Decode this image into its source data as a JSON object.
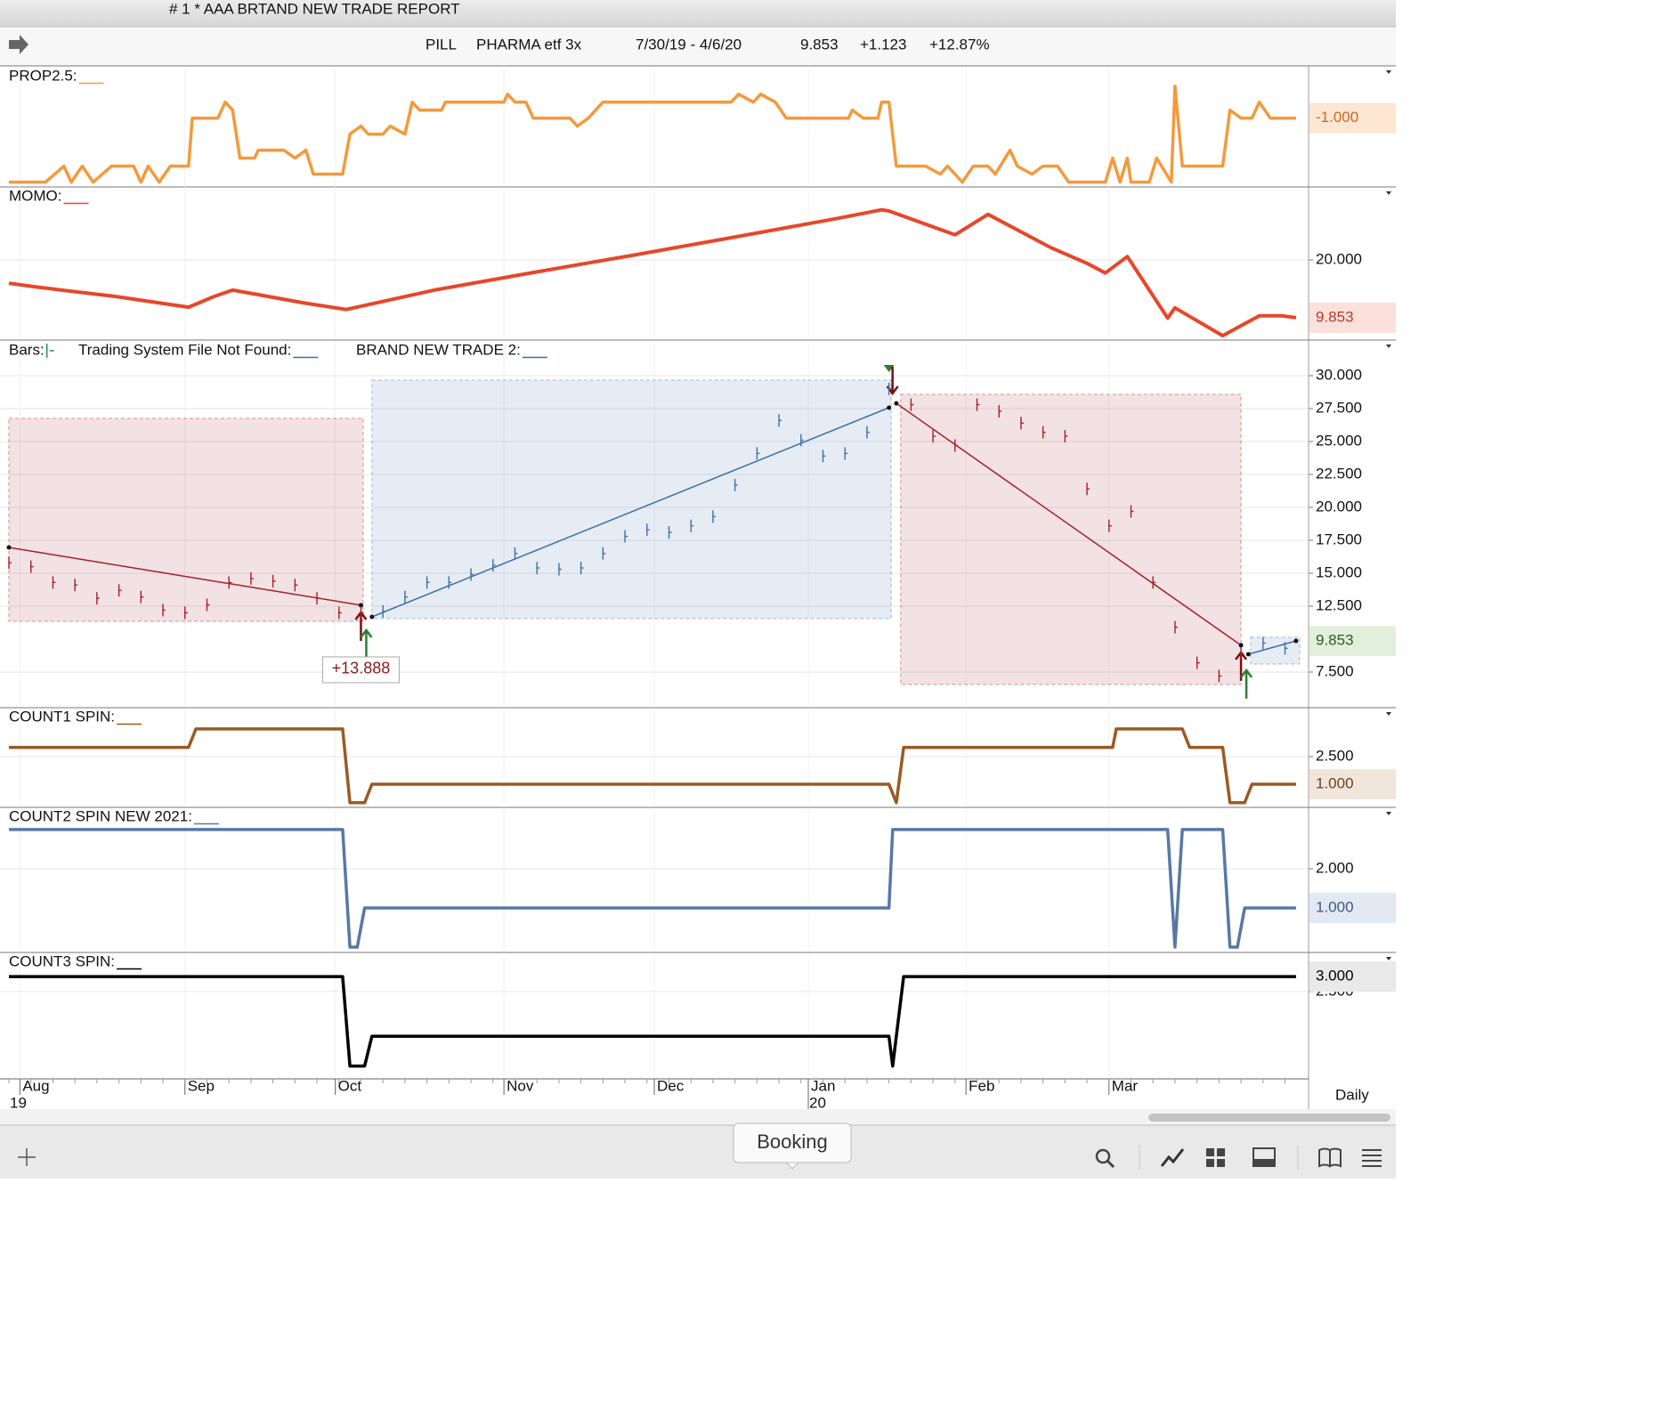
{
  "window": {
    "title": "# 1 * AAA BRTAND NEW TRADE REPORT"
  },
  "header": {
    "symbol": "PILL",
    "name": "PHARMA etf 3x",
    "range": "7/30/19 - 4/6/20",
    "last": "9.853",
    "change": "+1.123",
    "change_pct": "+12.87%"
  },
  "chart_data": [
    {
      "type": "line",
      "title": "PROP2.5:",
      "ylim": [
        -5.3,
        2.1
      ],
      "value_tag": {
        "value": -1,
        "label": "-1.000"
      },
      "series": [
        {
          "color": "#f39a3c",
          "x": [
            0,
            5,
            7.5,
            8.5,
            10,
            11.5,
            14,
            17,
            18,
            19,
            20.5,
            22,
            24.5,
            25,
            28.5,
            29.5,
            30.5,
            31.5,
            33.5,
            34,
            37.5,
            39,
            40.5,
            41.5,
            45.5,
            46.5,
            48,
            49,
            51,
            52,
            54,
            55,
            56,
            59,
            59.5,
            67.5,
            68,
            69,
            70.5,
            71.5,
            76.5,
            77.5,
            79,
            81,
            98.5,
            99.5,
            101.5,
            102.5,
            104.5,
            106,
            114.5,
            115,
            116.5,
            118.5,
            119,
            120,
            121,
            125,
            127,
            128,
            130,
            131.5,
            133.5,
            134.5,
            136.5,
            137.5,
            139.5,
            141,
            143,
            144.5,
            149.5,
            150.5,
            151.5,
            152.5,
            153,
            155.5,
            156.5,
            158.5,
            159,
            160,
            165.5,
            166.5,
            168,
            169.5,
            170.5,
            172,
            175.5
          ],
          "values": [
            -5,
            -5,
            -4,
            -5,
            -4,
            -5,
            -4,
            -4,
            -5,
            -4,
            -5,
            -4,
            -4,
            -1,
            -1,
            0,
            -0.5,
            -3.5,
            -3.5,
            -3,
            -3,
            -3.5,
            -3,
            -4.5,
            -4.5,
            -2,
            -1.5,
            -2,
            -2,
            -1.5,
            -2,
            0,
            -0.5,
            -0.5,
            0,
            0,
            0.5,
            0,
            0,
            -1,
            -1,
            -1.5,
            -1,
            0,
            0,
            0.5,
            0,
            0.5,
            0,
            -1,
            -1,
            -0.5,
            -1,
            -1,
            0,
            0,
            -4,
            -4,
            -4.5,
            -4,
            -5,
            -4,
            -4,
            -4.5,
            -3,
            -4,
            -4.5,
            -4,
            -4,
            -5,
            -5,
            -3.5,
            -5,
            -3.5,
            -5,
            -5,
            -3.5,
            -5,
            1,
            -4,
            -4,
            -0.5,
            -1,
            -1,
            0,
            -1,
            -1
          ]
        }
      ]
    },
    {
      "type": "line",
      "title": "MOMO:",
      "ylim": [
        6.25,
        32.5
      ],
      "yticks": [
        {
          "value": 20,
          "label": "20.000"
        }
      ],
      "value_tag": {
        "value": 9.853,
        "label": "9.853"
      },
      "series": [
        {
          "color": "#e8462a",
          "x": [
            0,
            3.5,
            8.5,
            14.5,
            24.5,
            28,
            30.5,
            34,
            40,
            46,
            58,
            71.5,
            85,
            98.5,
            113,
            119,
            120,
            129,
            133.5,
            142,
            147,
            149.5,
            152.5,
            158,
            159,
            165.5,
            170.5,
            173.5,
            175.5
          ],
          "values": [
            15.9,
            15.3,
            14.5,
            13.6,
            11.7,
            13.6,
            14.7,
            13.9,
            12.5,
            11.3,
            14.7,
            17.8,
            20.8,
            23.9,
            27.3,
            28.8,
            28.6,
            24.4,
            28,
            22.2,
            19.4,
            17.7,
            20.6,
            9.8,
            11.6,
            6.7,
            10.2,
            10.2,
            9.853
          ]
        }
      ]
    },
    {
      "type": "price_bar",
      "titles": [
        "Bars:",
        "Trading System File Not Found:",
        "BRAND NEW TRADE 2:"
      ],
      "ylim": [
        4.93,
        32.57
      ],
      "yticks": [
        {
          "value": 30,
          "label": "30.000"
        },
        {
          "value": 27.5,
          "label": "27.500"
        },
        {
          "value": 25,
          "label": "25.000"
        },
        {
          "value": 22.5,
          "label": "22.500"
        },
        {
          "value": 20,
          "label": "20.000"
        },
        {
          "value": 17.5,
          "label": "17.500"
        },
        {
          "value": 15,
          "label": "15.000"
        },
        {
          "value": 12.5,
          "label": "12.500"
        },
        {
          "value": 7.5,
          "label": "7.500"
        }
      ],
      "value_tag": {
        "value": 9.853,
        "label": "9.853"
      },
      "bars": {
        "x": [
          0,
          3,
          6,
          9,
          12,
          15,
          18,
          21,
          24,
          27,
          30,
          33,
          36,
          39,
          42,
          45,
          48,
          51,
          54,
          57,
          60,
          63,
          66,
          69,
          72,
          75,
          78,
          81,
          84,
          87,
          90,
          93,
          96,
          99,
          102,
          105,
          108,
          111,
          114,
          117,
          120,
          123,
          126,
          129,
          132,
          135,
          138,
          141,
          144,
          147,
          150,
          153,
          156,
          159,
          162,
          165,
          168,
          171,
          174
        ],
        "values": [
          15.8,
          15.5,
          14.3,
          14.1,
          13.1,
          13.7,
          13.2,
          12.2,
          12.0,
          12.6,
          14.3,
          14.6,
          14.4,
          14.1,
          13.1,
          12.0,
          12.0,
          12.1,
          13.2,
          14.3,
          14.3,
          14.9,
          15.6,
          16.5,
          15.4,
          15.3,
          15.4,
          16.5,
          17.8,
          18.3,
          18.1,
          18.6,
          19.3,
          21.7,
          24.1,
          26.6,
          25.1,
          23.9,
          24.1,
          25.7,
          29.0,
          27.8,
          25.4,
          24.7,
          27.8,
          27.3,
          26.4,
          25.7,
          25.4,
          21.4,
          18.6,
          19.7,
          14.3,
          10.9,
          8.2,
          7.2,
          8.9,
          9.7,
          9.3
        ]
      },
      "trades": [
        {
          "color": "#a3202a",
          "start": 0,
          "end": 48.3,
          "low": 11.35,
          "high": 26.76,
          "line_x": [
            0,
            48
          ],
          "line_y": [
            16.96,
            12.57
          ],
          "label": "+13.888"
        },
        {
          "color": "#3d6fa8",
          "start": 49.5,
          "end": 120.3,
          "low": 11.55,
          "high": 29.66,
          "line_x": [
            49.5,
            120
          ],
          "line_y": [
            11.69,
            27.57
          ]
        },
        {
          "color": "#a3202a",
          "start": 121.6,
          "end": 168,
          "low": 6.55,
          "high": 28.58,
          "line_x": [
            121,
            168
          ],
          "line_y": [
            27.9,
            9.53
          ]
        },
        {
          "color": "#3d6fa8",
          "start": 169.3,
          "end": 176,
          "low": 8.11,
          "high": 10.14,
          "line_x": [
            169,
            175.5
          ],
          "line_y": [
            8.85,
            9.86
          ]
        }
      ]
    },
    {
      "type": "line",
      "title": "COUNT1 SPIN:",
      "ylim": [
        -0.16,
        5.06
      ],
      "yticks": [
        {
          "value": 2.5,
          "label": "2.500"
        }
      ],
      "value_tag": {
        "value": 1,
        "label": "1.000"
      },
      "series": [
        {
          "color": "#9a5a22",
          "x": [
            0,
            24.5,
            25.5,
            45.5,
            46.5,
            48.5,
            49.5,
            120,
            121,
            122,
            150.5,
            151,
            160,
            161,
            165.5,
            166.5,
            168.5,
            169.5,
            175.5
          ],
          "values": [
            3,
            3,
            4,
            4,
            0,
            0,
            1,
            1,
            0,
            3,
            3,
            4,
            4,
            3,
            3,
            0,
            0,
            1,
            1
          ]
        }
      ]
    },
    {
      "type": "line",
      "title": "COUNT2 SPIN NEW 2021:",
      "ylim": [
        -0.09,
        3.52
      ],
      "yticks": [
        {
          "value": 2,
          "label": "2.000"
        }
      ],
      "value_tag": {
        "value": 1,
        "label": "1.000"
      },
      "series": [
        {
          "color": "#5878a4",
          "x": [
            0,
            45.5,
            46.5,
            47.5,
            48.5,
            120,
            120.5,
            158,
            159,
            160,
            165.5,
            166.5,
            167.5,
            168.5,
            175.5
          ],
          "values": [
            3,
            3,
            0,
            0,
            1,
            1,
            3,
            3,
            0,
            3,
            3,
            0,
            0,
            1,
            1
          ]
        }
      ]
    },
    {
      "type": "line",
      "title": "COUNT3 SPIN:",
      "ylim": [
        -0.37,
        3.75
      ],
      "yticks": [
        {
          "value": 2.5,
          "label": "2.500"
        }
      ],
      "value_tag": {
        "value": 3,
        "label": "3.000"
      },
      "series": [
        {
          "color": "#000000",
          "x": [
            0,
            45.5,
            46.5,
            48.5,
            49.5,
            120,
            120.5,
            122,
            175.5
          ],
          "values": [
            3,
            3,
            0,
            0,
            1,
            1,
            0,
            3,
            3
          ]
        }
      ]
    }
  ],
  "x_axis": {
    "xlim": [
      0,
      176
    ],
    "xticks": [
      {
        "value": 1.5,
        "label": "Aug"
      },
      {
        "value": 24,
        "label": "Sep"
      },
      {
        "value": 44.5,
        "label": "Oct"
      },
      {
        "value": 67.5,
        "label": "Nov"
      },
      {
        "value": 88,
        "label": "Dec"
      },
      {
        "value": 109,
        "label": "Jan"
      },
      {
        "value": 130.5,
        "label": "Feb"
      },
      {
        "value": 150,
        "label": "Mar"
      }
    ],
    "year_labels": [
      {
        "value": 0,
        "label": "19"
      },
      {
        "value": 109,
        "label": "20"
      }
    ],
    "interval": "Daily"
  },
  "footer": {
    "tooltip": "Booking"
  }
}
